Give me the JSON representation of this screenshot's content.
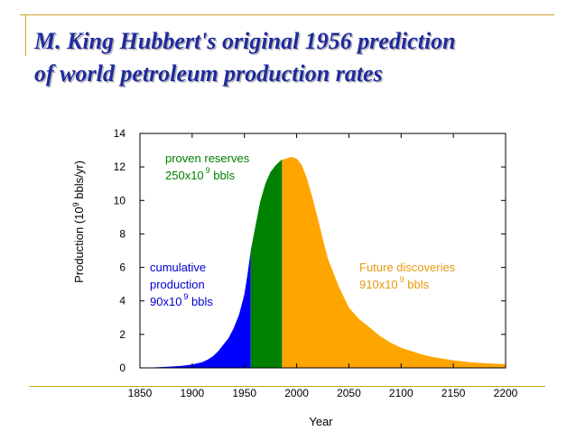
{
  "slide": {
    "title_line1": "M. King Hubbert's original 1956 prediction",
    "title_line2": "of world petroleum production rates"
  },
  "colors": {
    "title": "#1f2a9e",
    "frame": "#c9a227",
    "cumulative": "#0000ff",
    "proven": "#008000",
    "future": "#ffa500"
  },
  "chart_data": {
    "type": "area",
    "xlabel": "Year",
    "ylabel": "Production (10 9 bbls/yr)",
    "ylabel_parts": {
      "pre": "Production (10",
      "sup": "9",
      "post": " bbls/yr)"
    },
    "xlim": [
      1850,
      2200
    ],
    "ylim": [
      0,
      14
    ],
    "xticks": [
      1850,
      1900,
      1950,
      2000,
      2050,
      2100,
      2150,
      2200
    ],
    "yticks": [
      0,
      2,
      4,
      6,
      8,
      10,
      12,
      14
    ],
    "grid": false,
    "series": [
      {
        "name": "cumulative production",
        "color": "#0000ff",
        "x_start": 1850,
        "x_end": 1956
      },
      {
        "name": "proven reserves",
        "color": "#008000",
        "x_start": 1956,
        "x_end": 1986
      },
      {
        "name": "Future discoveries",
        "color": "#ffa500",
        "x_start": 1986,
        "x_end": 2200
      }
    ],
    "curve": {
      "x": [
        1850,
        1860,
        1870,
        1880,
        1890,
        1900,
        1910,
        1915,
        1920,
        1925,
        1930,
        1935,
        1940,
        1945,
        1950,
        1953,
        1956,
        1960,
        1965,
        1970,
        1975,
        1980,
        1985,
        1990,
        1995,
        2000,
        2005,
        2010,
        2015,
        2020,
        2025,
        2030,
        2040,
        2050,
        2060,
        2070,
        2080,
        2090,
        2100,
        2110,
        2120,
        2130,
        2140,
        2150,
        2160,
        2170,
        2180,
        2190,
        2200
      ],
      "y": [
        0,
        0.02,
        0.05,
        0.08,
        0.12,
        0.2,
        0.35,
        0.5,
        0.7,
        1.0,
        1.4,
        1.8,
        2.4,
        3.2,
        4.4,
        5.6,
        7.0,
        8.3,
        9.9,
        11.0,
        11.7,
        12.1,
        12.4,
        12.5,
        12.6,
        12.5,
        12.1,
        11.3,
        10.2,
        9.0,
        7.7,
        6.5,
        4.9,
        3.6,
        2.9,
        2.4,
        1.9,
        1.5,
        1.2,
        1.0,
        0.8,
        0.65,
        0.55,
        0.45,
        0.38,
        0.32,
        0.28,
        0.25,
        0.22
      ]
    },
    "annotations": {
      "proven": {
        "line1": "proven reserves",
        "line2_pre": "250x10",
        "line2_sup": "9",
        "line2_post": " bbls"
      },
      "cumulative": {
        "line1": "cumulative",
        "line2": "production",
        "line3_pre": "90x10",
        "line3_sup": "9",
        "line3_post": " bbls"
      },
      "future": {
        "line1": "Future discoveries",
        "line2_pre": "910x10",
        "line2_sup": "9",
        "line2_post": " bbls"
      }
    }
  }
}
